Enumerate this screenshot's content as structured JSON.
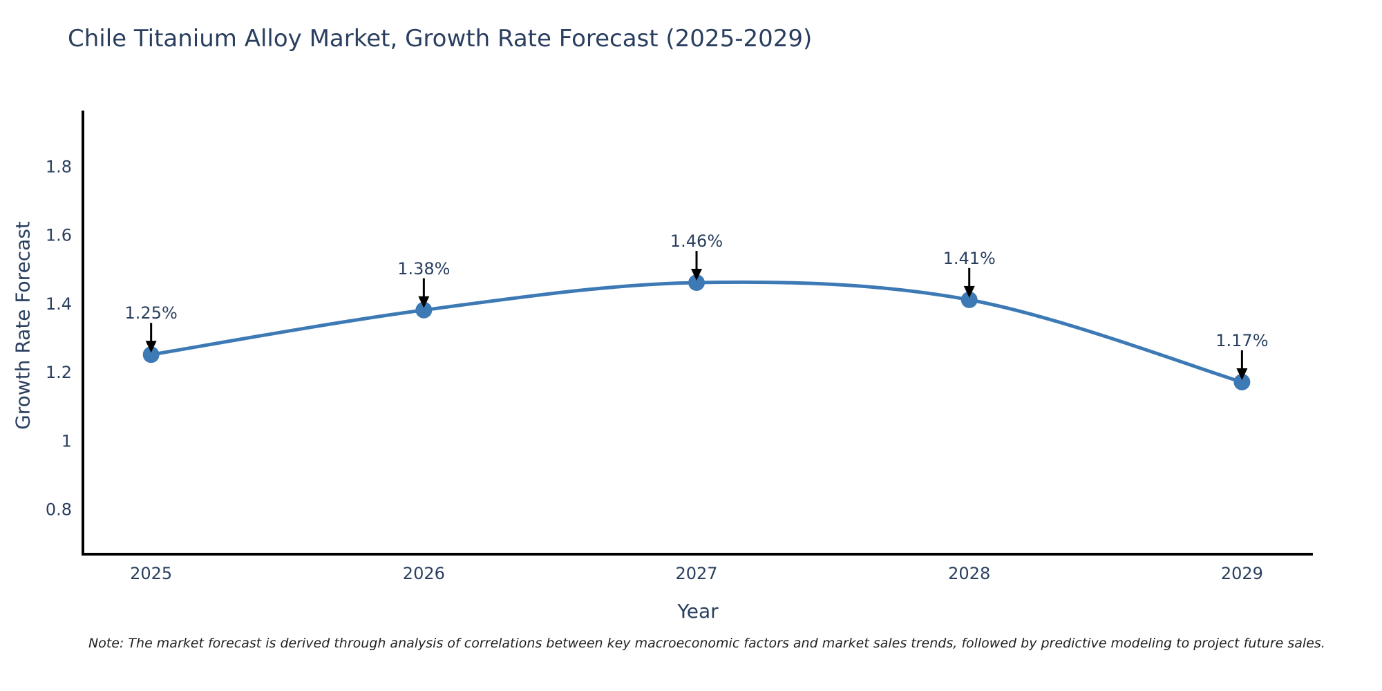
{
  "note": "Note: The market forecast is derived through analysis of correlations between key macroeconomic factors and market sales trends, followed by predictive modeling to project future sales.",
  "chart_data": {
    "type": "line",
    "title": "Chile Titanium Alloy Market, Growth Rate Forecast (2025-2029)",
    "xlabel": "Year",
    "ylabel": "Growth Rate Forecast",
    "x": [
      2025,
      2026,
      2027,
      2028,
      2029
    ],
    "y": [
      1.25,
      1.38,
      1.46,
      1.41,
      1.17
    ],
    "point_labels": [
      "1.25%",
      "1.38%",
      "1.46%",
      "1.41%",
      "1.17%"
    ],
    "xtick_labels": [
      "2025",
      "2026",
      "2027",
      "2028",
      "2029"
    ],
    "ytick_values": [
      0.8,
      1.0,
      1.2,
      1.4,
      1.6,
      1.8
    ],
    "ytick_labels": [
      "0.8",
      "1",
      "1.2",
      "1.4",
      "1.6",
      "1.8"
    ],
    "xlim": [
      2024.75,
      2029.26
    ],
    "ylim": [
      0.668,
      1.962
    ],
    "grid": false,
    "legend": "none",
    "line_shape": "spline",
    "colors": {
      "line": "#3d7ab5",
      "marker": "#3d7ab5",
      "axis": "#000000",
      "tick_text": "#2a3f5f",
      "annotation_text": "#2a3f5f",
      "annotation_arrow": "#000000"
    }
  }
}
